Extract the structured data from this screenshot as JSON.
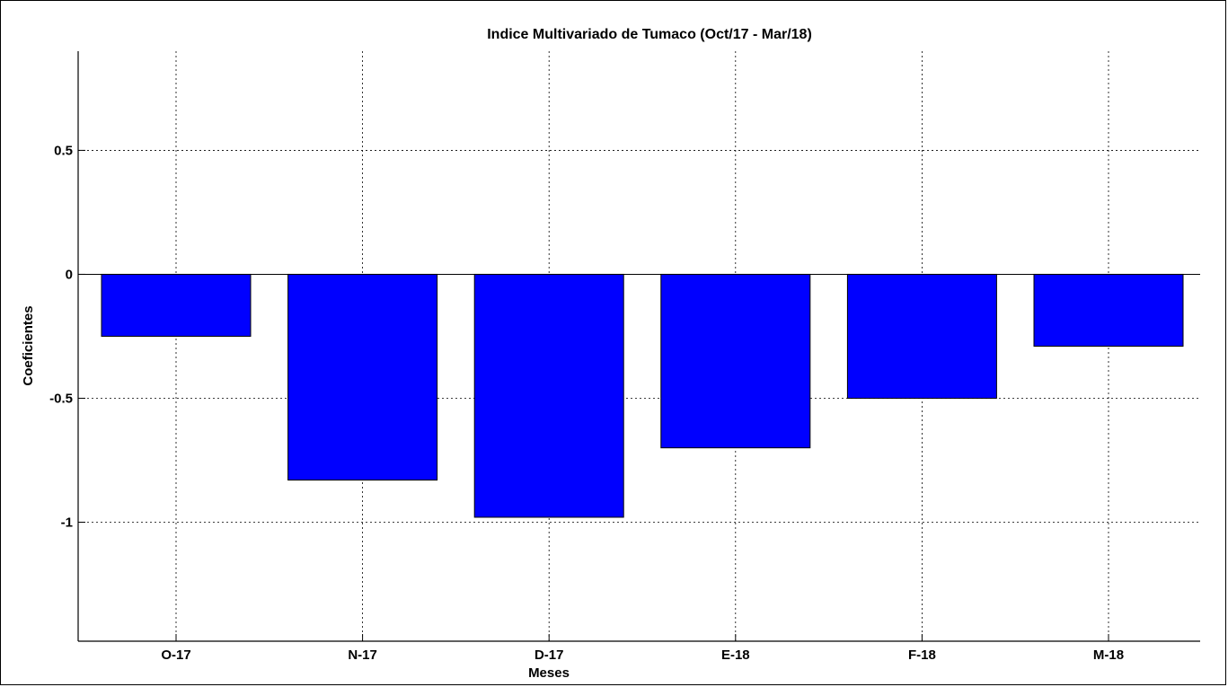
{
  "chart_data": {
    "type": "bar",
    "title": "Indice Multivariado de Tumaco (Oct/17 - Mar/18)",
    "xlabel": "Meses",
    "ylabel": "Coeficientes",
    "categories": [
      "O-17",
      "N-17",
      "D-17",
      "E-18",
      "F-18",
      "M-18"
    ],
    "values": [
      -0.25,
      -0.83,
      -0.98,
      -0.7,
      -0.5,
      -0.29
    ],
    "ylim": [
      -1.48,
      0.9
    ],
    "yticks": [
      0.5,
      0,
      -0.5,
      -1
    ],
    "ytick_labels": [
      "0.5",
      "0",
      "-0.5",
      "-1"
    ],
    "grid": true,
    "bar_color": "#0000ff",
    "bar_edge_color": "#000000"
  }
}
